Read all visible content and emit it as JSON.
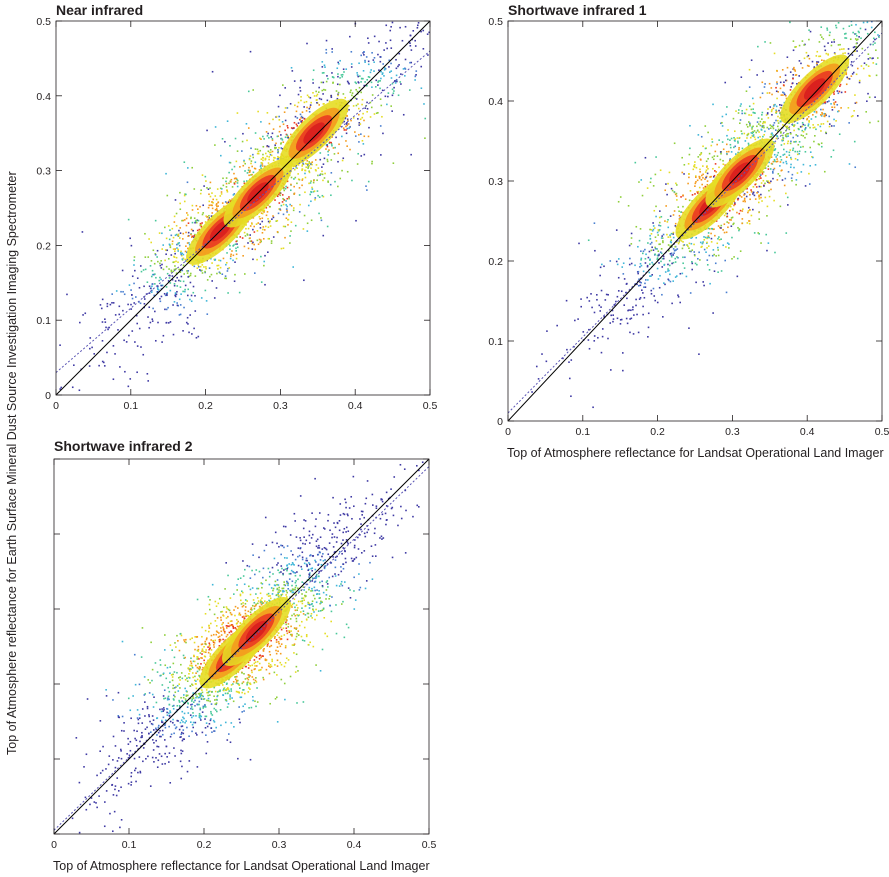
{
  "figure": {
    "y_axis_title": "Top of Atmosphere reflectance for Earth Surface Mineral Dust Source Investigation Imaging Spectrometer",
    "x_axis_title": "Top of Atmosphere reflectance for Landsat Operational Land Imager"
  },
  "colors": {
    "density_scale": [
      "#3f3aa4",
      "#4a7fd0",
      "#3fb6d8",
      "#49c89a",
      "#8fcf3b",
      "#e5dd24",
      "#f49b1e",
      "#ea3a22",
      "#d81e1e"
    ],
    "one_to_one_line": "#000000",
    "regression_line": "#5a55b5"
  },
  "chart_data": [
    {
      "type": "scatter",
      "title": "Near infrared",
      "xlabel": "",
      "ylabel": "Top of Atmosphere reflectance for Earth Surface Mineral Dust Source Investigation Imaging Spectrometer",
      "xlim": [
        0,
        0.5
      ],
      "ylim": [
        0,
        0.5
      ],
      "x_ticks": [
        "0",
        "0.1",
        "0.2",
        "0.3",
        "0.4",
        "0.5"
      ],
      "y_ticks": [
        "0",
        "0.1",
        "0.2",
        "0.3",
        "0.4",
        "0.5"
      ],
      "one_to_one_line": true,
      "regression_line": {
        "slope": 0.86,
        "intercept": 0.03
      },
      "density_clusters": [
        {
          "x": 0.22,
          "y": 0.22,
          "peak": "red"
        },
        {
          "x": 0.27,
          "y": 0.27,
          "peak": "red"
        },
        {
          "x": 0.345,
          "y": 0.35,
          "peak": "red"
        }
      ],
      "scatter_extent": {
        "x": [
          0.0,
          0.46
        ],
        "y": [
          0.0,
          0.46
        ]
      }
    },
    {
      "type": "scatter",
      "title": "Shortwave infrared 1",
      "xlabel": "Top of Atmosphere reflectance for Landsat Operational Land Imager",
      "ylabel": "",
      "xlim": [
        0,
        0.5
      ],
      "ylim": [
        0,
        0.5
      ],
      "x_ticks": [
        "0",
        "0.1",
        "0.2",
        "0.3",
        "0.4",
        "0.5"
      ],
      "y_ticks": [
        "0",
        "0.1",
        "0.2",
        "0.3",
        "0.4",
        "0.5"
      ],
      "one_to_one_line": true,
      "regression_line": {
        "slope": 0.95,
        "intercept": 0.01
      },
      "density_clusters": [
        {
          "x": 0.27,
          "y": 0.27,
          "peak": "red"
        },
        {
          "x": 0.31,
          "y": 0.31,
          "peak": "red"
        },
        {
          "x": 0.41,
          "y": 0.415,
          "peak": "red"
        }
      ],
      "scatter_extent": {
        "x": [
          0.0,
          0.5
        ],
        "y": [
          0.0,
          0.5
        ]
      }
    },
    {
      "type": "scatter",
      "title": "Shortwave infrared 2",
      "xlabel": "Top of Atmosphere reflectance for Landsat Operational Land Imager",
      "ylabel": "",
      "xlim": [
        0,
        0.5
      ],
      "ylim": [
        0,
        0.5
      ],
      "x_ticks": [
        "0",
        "0.1",
        "0.2",
        "0.3",
        "0.4",
        "0.5"
      ],
      "y_ticks": [],
      "one_to_one_line": true,
      "regression_line": {
        "slope": 0.97,
        "intercept": 0.005
      },
      "density_clusters": [
        {
          "x": 0.24,
          "y": 0.24,
          "peak": "red"
        },
        {
          "x": 0.27,
          "y": 0.27,
          "peak": "red"
        }
      ],
      "scatter_extent": {
        "x": [
          0.0,
          0.5
        ],
        "y": [
          0.0,
          0.5
        ]
      }
    }
  ]
}
